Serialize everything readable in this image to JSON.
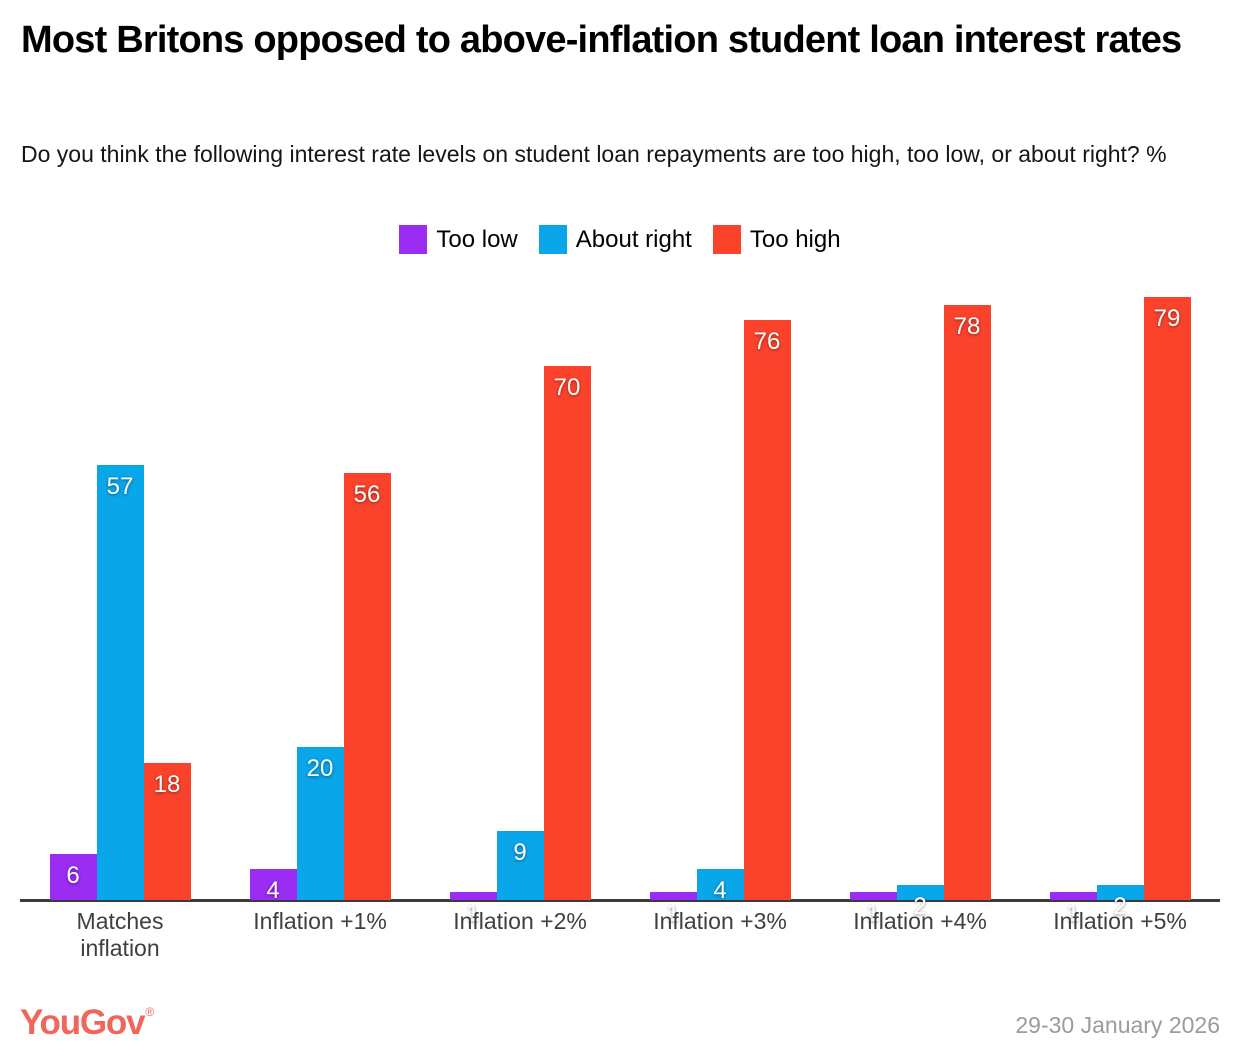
{
  "title": "Most Britons opposed to above-inflation student loan interest rates",
  "subtitle": "Do you think the following interest rate levels on student loan repayments are too high, too low, or about right? %",
  "chart_data": {
    "type": "bar",
    "categories": [
      "Matches inflation",
      "Inflation +1%",
      "Inflation +2%",
      "Inflation +3%",
      "Inflation +4%",
      "Inflation +5%"
    ],
    "series": [
      {
        "name": "Too low",
        "color": "#9B2DF2",
        "values": [
          6,
          4,
          1,
          1,
          1,
          1
        ]
      },
      {
        "name": "About right",
        "color": "#0AA6EA",
        "values": [
          57,
          20,
          9,
          4,
          2,
          2
        ]
      },
      {
        "name": "Too high",
        "color": "#FB432C",
        "values": [
          18,
          56,
          70,
          76,
          78,
          79
        ]
      }
    ],
    "unit": "%",
    "ylim": [
      0,
      83
    ],
    "grid": false,
    "legend_position": "top",
    "value_labels": true,
    "axis_line_color": "#3b3b3b"
  },
  "footer": {
    "brand": "YouGov",
    "registered_mark": "®",
    "brand_color": "#F0655C",
    "date": "29-30 January 2026"
  }
}
